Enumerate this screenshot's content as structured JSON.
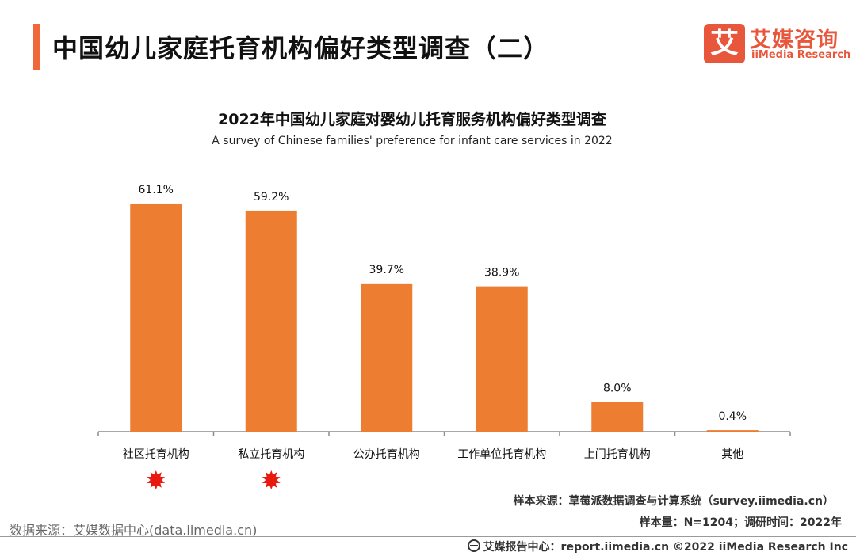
{
  "header": {
    "title": "中国幼儿家庭托育机构偏好类型调查（二）",
    "accent_color": "#f0683a"
  },
  "logo": {
    "mark": "艾",
    "name_cn": "艾媒咨询",
    "name_en": "iiMedia Research",
    "color": "#e8573c"
  },
  "chart_data": {
    "type": "bar",
    "title": "2022年中国幼儿家庭对婴幼儿托育服务机构偏好类型调查",
    "subtitle": "A survey of Chinese families' preference for infant care services in 2022",
    "categories": [
      "社区托育机构",
      "私立托育机构",
      "公办托育机构",
      "工作单位托育机构",
      "上门托育机构",
      "其他"
    ],
    "values": [
      61.1,
      59.2,
      39.7,
      38.9,
      8.0,
      0.4
    ],
    "value_labels": [
      "61.1%",
      "59.2%",
      "39.7%",
      "38.9%",
      "8.0%",
      "0.4%"
    ],
    "unit": "%",
    "ylim": [
      0,
      70
    ],
    "highlighted_categories": [
      "社区托育机构",
      "私立托育机构"
    ],
    "bar_color": "#ed7d31",
    "marker_color": "#e8190f",
    "grid": false,
    "legend": "none"
  },
  "notes": {
    "sample_source": "样本来源：草莓派数据调查与计算系统（survey.iimedia.cn）",
    "sample_size": "样本量：N=1204；调研时间：2022年",
    "data_source": "数据来源：艾媒数据中心(data.iimedia.cn)",
    "footer": "艾媒报告中心：report.iimedia.cn  ©2022  iiMedia Research  Inc"
  }
}
